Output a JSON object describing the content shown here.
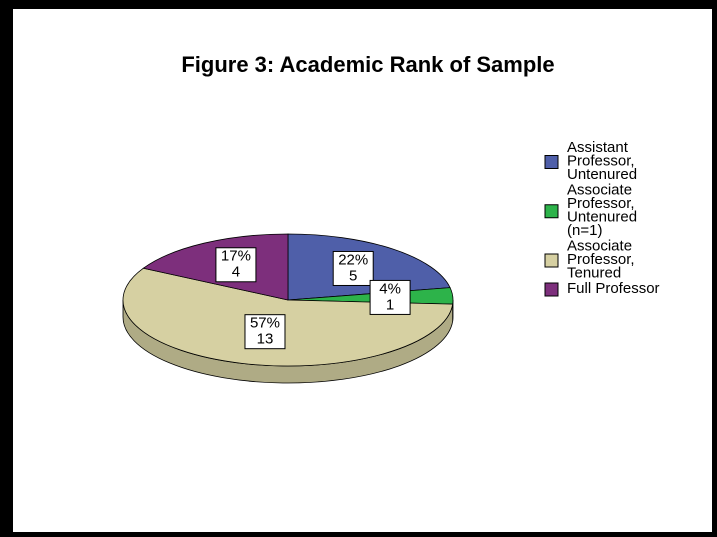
{
  "chart_data": {
    "type": "pie",
    "title": "Figure 3: Academic Rank of Sample",
    "categories": [
      "Assistant Professor, Untenured",
      "Associate Professor, Untenured (n=1)",
      "Associate Professor, Tenured",
      "Full Professor"
    ],
    "values": [
      22,
      4,
      57,
      17
    ],
    "value_labels": [
      "22%",
      "4%",
      "57%",
      "17%"
    ],
    "counts": [
      5,
      1,
      13,
      4
    ],
    "colors": [
      "#4f5fa9",
      "#2db34a",
      "#d6d0a2",
      "#7d2f7c"
    ]
  }
}
